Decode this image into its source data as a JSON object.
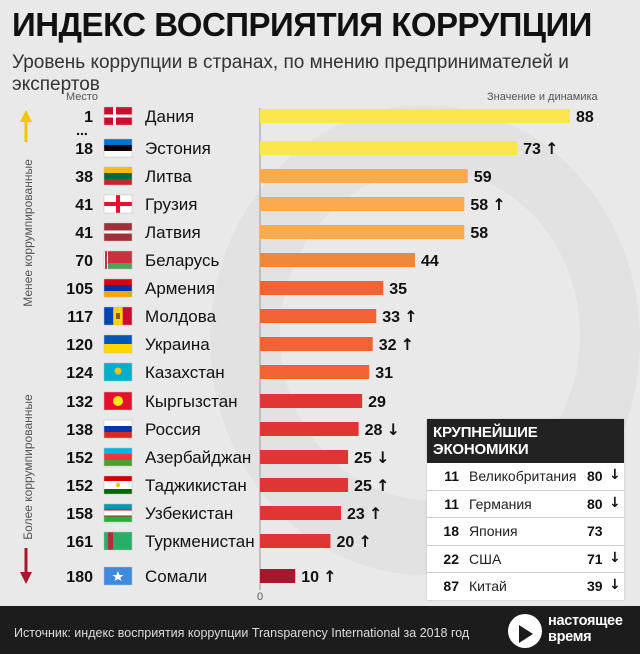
{
  "title": "ИНДЕКС ВОСПРИЯТИЯ КОРРУПЦИИ",
  "subtitle": "Уровень коррупции в странах, по мнению предпринимателей и экспертов",
  "header_rank": "Место",
  "header_value": "Значение и динамика",
  "side_top": "Менее коррумпированные",
  "side_bottom": "Более коррумпированные",
  "ellipsis": "...",
  "chart_data": {
    "type": "bar",
    "orientation": "horizontal",
    "xlim": [
      0,
      100
    ],
    "zero_label": "0",
    "rows": [
      {
        "rank": "1",
        "country": "Дания",
        "value": 88,
        "trend": "",
        "flag": "denmark",
        "color": "#fce64d"
      },
      {
        "rank": "18",
        "country": "Эстония",
        "value": 73,
        "trend": "up",
        "flag": "estonia",
        "color": "#fce64d"
      },
      {
        "rank": "38",
        "country": "Литва",
        "value": 59,
        "trend": "",
        "flag": "lithuania",
        "color": "#fcaa4e"
      },
      {
        "rank": "41",
        "country": "Грузия",
        "value": 58,
        "trend": "up",
        "flag": "georgia",
        "color": "#fcaa4e"
      },
      {
        "rank": "41",
        "country": "Латвия",
        "value": 58,
        "trend": "",
        "flag": "latvia",
        "color": "#fcaa4e"
      },
      {
        "rank": "70",
        "country": "Беларусь",
        "value": 44,
        "trend": "",
        "flag": "belarus",
        "color": "#f0883a"
      },
      {
        "rank": "105",
        "country": "Армения",
        "value": 35,
        "trend": "",
        "flag": "armenia",
        "color": "#f26436"
      },
      {
        "rank": "117",
        "country": "Молдова",
        "value": 33,
        "trend": "up",
        "flag": "moldova",
        "color": "#f26436"
      },
      {
        "rank": "120",
        "country": "Украина",
        "value": 32,
        "trend": "up",
        "flag": "ukraine",
        "color": "#f26436"
      },
      {
        "rank": "124",
        "country": "Казахстан",
        "value": 31,
        "trend": "",
        "flag": "kazakhstan",
        "color": "#f26436"
      },
      {
        "rank": "132",
        "country": "Кыргызстан",
        "value": 29,
        "trend": "",
        "flag": "kyrgyzstan",
        "color": "#e03535"
      },
      {
        "rank": "138",
        "country": "Россия",
        "value": 28,
        "trend": "down",
        "flag": "russia",
        "color": "#e03535"
      },
      {
        "rank": "152",
        "country": "Азербайджан",
        "value": 25,
        "trend": "down",
        "flag": "azerbaijan",
        "color": "#e03535"
      },
      {
        "rank": "152",
        "country": "Таджикистан",
        "value": 25,
        "trend": "up",
        "flag": "tajikistan",
        "color": "#e03535"
      },
      {
        "rank": "158",
        "country": "Узбекистан",
        "value": 23,
        "trend": "up",
        "flag": "uzbekistan",
        "color": "#e03535"
      },
      {
        "rank": "161",
        "country": "Туркменистан",
        "value": 20,
        "trend": "up",
        "flag": "turkmenistan",
        "color": "#e03535"
      },
      {
        "rank": "180",
        "country": "Сомали",
        "value": 10,
        "trend": "up",
        "flag": "somalia",
        "color": "#a6162e"
      }
    ]
  },
  "economies": {
    "title": "КРУПНЕЙШИЕ ЭКОНОМИКИ",
    "rows": [
      {
        "rank": "11",
        "country": "Великобритания",
        "value": "80",
        "trend": "down"
      },
      {
        "rank": "11",
        "country": "Германия",
        "value": "80",
        "trend": "down"
      },
      {
        "rank": "18",
        "country": "Япония",
        "value": "73",
        "trend": ""
      },
      {
        "rank": "22",
        "country": "США",
        "value": "71",
        "trend": "down"
      },
      {
        "rank": "87",
        "country": "Китай",
        "value": "39",
        "trend": "down"
      }
    ]
  },
  "source": "Источник: индекс восприятия коррупции Transparency International за 2018 год",
  "logo": {
    "line1": "настоящее",
    "line2": "время"
  },
  "arrows": {
    "up": "↑",
    "down": "↓"
  }
}
